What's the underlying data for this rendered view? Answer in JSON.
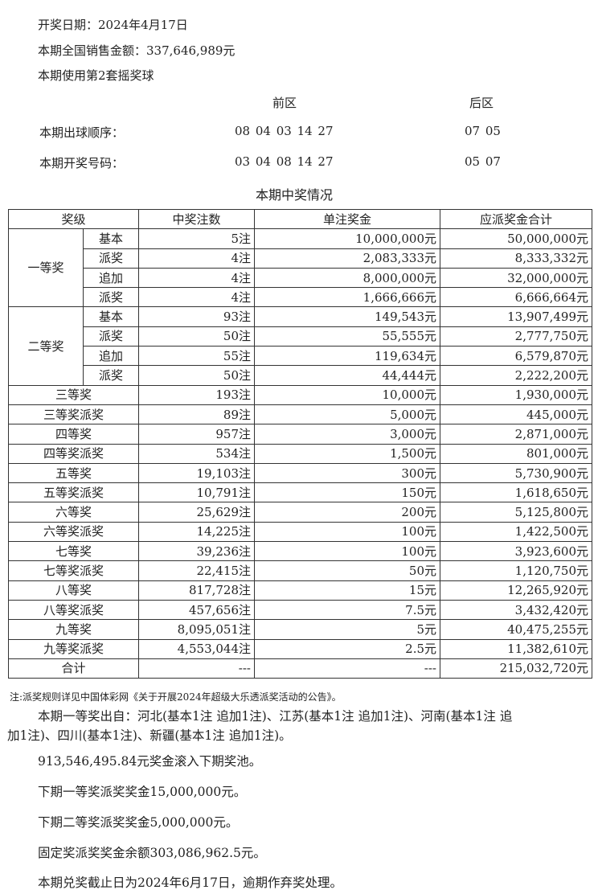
{
  "header": {
    "draw_date": "开奖日期：2024年4月17日",
    "sales": "本期全国销售金额：337,646,989元",
    "ball_set": "本期使用第2套摇奖球"
  },
  "numbers": {
    "front_label": "前区",
    "back_label": "后区",
    "order_label": "本期出球顺序：",
    "order_front": "08 04 03 14 27",
    "order_back": "07 05",
    "result_label": "本期开奖号码：",
    "result_front": "03 04 08 14 27",
    "result_back": "05 07"
  },
  "table": {
    "title": "本期中奖情况",
    "headers": [
      "奖级",
      "中奖注数",
      "单注奖金",
      "应派奖金合计"
    ],
    "tier1": {
      "label": "一等奖",
      "rows": [
        [
          "基本",
          "5注",
          "10,000,000元",
          "50,000,000元"
        ],
        [
          "派奖",
          "4注",
          "2,083,333元",
          "8,333,332元"
        ],
        [
          "追加",
          "4注",
          "8,000,000元",
          "32,000,000元"
        ],
        [
          "派奖",
          "4注",
          "1,666,666元",
          "6,666,664元"
        ]
      ]
    },
    "tier2": {
      "label": "二等奖",
      "rows": [
        [
          "基本",
          "93注",
          "149,543元",
          "13,907,499元"
        ],
        [
          "派奖",
          "50注",
          "55,555元",
          "2,777,750元"
        ],
        [
          "追加",
          "55注",
          "119,634元",
          "6,579,870元"
        ],
        [
          "派奖",
          "50注",
          "44,444元",
          "2,222,200元"
        ]
      ]
    },
    "rows": [
      [
        "三等奖",
        "193注",
        "10,000元",
        "1,930,000元"
      ],
      [
        "三等奖派奖",
        "89注",
        "5,000元",
        "445,000元"
      ],
      [
        "四等奖",
        "957注",
        "3,000元",
        "2,871,000元"
      ],
      [
        "四等奖派奖",
        "534注",
        "1,500元",
        "801,000元"
      ],
      [
        "五等奖",
        "19,103注",
        "300元",
        "5,730,900元"
      ],
      [
        "五等奖派奖",
        "10,791注",
        "150元",
        "1,618,650元"
      ],
      [
        "六等奖",
        "25,629注",
        "200元",
        "5,125,800元"
      ],
      [
        "六等奖派奖",
        "14,225注",
        "100元",
        "1,422,500元"
      ],
      [
        "七等奖",
        "39,236注",
        "100元",
        "3,923,600元"
      ],
      [
        "七等奖派奖",
        "22,415注",
        "50元",
        "1,120,750元"
      ],
      [
        "八等奖",
        "817,728注",
        "15元",
        "12,265,920元"
      ],
      [
        "八等奖派奖",
        "457,656注",
        "7.5元",
        "3,432,420元"
      ],
      [
        "九等奖",
        "8,095,051注",
        "5元",
        "40,475,255元"
      ],
      [
        "九等奖派奖",
        "4,553,044注",
        "2.5元",
        "11,382,610元"
      ],
      [
        "合计",
        "---",
        "---",
        "215,032,720元"
      ]
    ]
  },
  "footer": {
    "note": "注:派奖规则详见中国体彩网《关于开展2024年超级大乐透派奖活动的公告》。",
    "winners_line1": "本期一等奖出自：河北(基本1注 追加1注)、江苏(基本1注 追加1注)、河南(基本1注 追",
    "winners_line2": "加1注)、四川(基本1注)、新疆(基本1注 追加1注)。",
    "rollover": "913,546,495.84元奖金滚入下期奖池。",
    "next_tier1": "下期一等奖派奖奖金15,000,000元。",
    "next_tier2": "下期二等奖派奖奖金5,000,000元。",
    "fixed_balance": "固定奖派奖奖金余额303,086,962.5元。",
    "deadline": "本期兑奖截止日为2024年6月17日，逾期作弃奖处理。"
  }
}
